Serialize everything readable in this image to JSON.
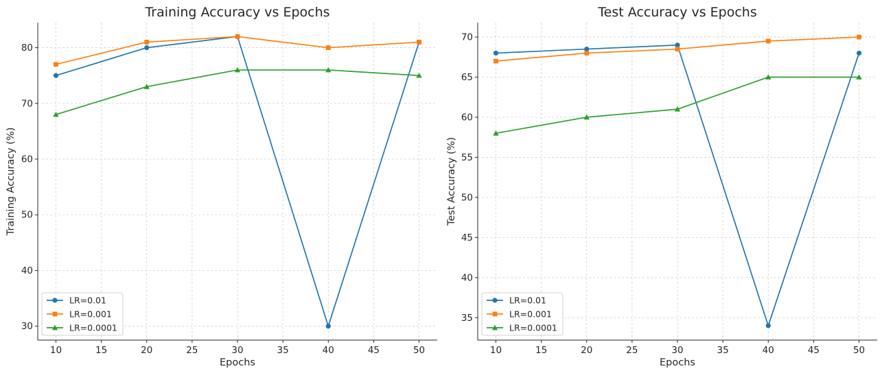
{
  "chart_data": [
    {
      "type": "line",
      "title": "Training Accuracy vs Epochs",
      "xlabel": "Epochs",
      "ylabel": "Training Accuracy (%)",
      "x": [
        10,
        20,
        30,
        40,
        50
      ],
      "xlim": [
        8,
        52
      ],
      "ylim": [
        27.5,
        84.5
      ],
      "xticks": [
        10,
        15,
        20,
        25,
        30,
        35,
        40,
        45,
        50
      ],
      "yticks": [
        30,
        40,
        50,
        60,
        70,
        80
      ],
      "grid": true,
      "legend_position": "lower-left",
      "series": [
        {
          "name": "LR=0.01",
          "color": "#1f77b4",
          "marker": "circle",
          "values": [
            75,
            80,
            82,
            30,
            81
          ]
        },
        {
          "name": "LR=0.001",
          "color": "#ff7f0e",
          "marker": "square",
          "values": [
            77,
            81,
            82,
            80,
            81
          ]
        },
        {
          "name": "LR=0.0001",
          "color": "#2ca02c",
          "marker": "triangle",
          "values": [
            68,
            73,
            76,
            76,
            75
          ]
        }
      ]
    },
    {
      "type": "line",
      "title": "Test Accuracy vs Epochs",
      "xlabel": "Epochs",
      "ylabel": "Test Accuracy (%)",
      "x": [
        10,
        20,
        30,
        40,
        50
      ],
      "xlim": [
        8,
        52
      ],
      "ylim": [
        32.2,
        71.8
      ],
      "xticks": [
        10,
        15,
        20,
        25,
        30,
        35,
        40,
        45,
        50
      ],
      "yticks": [
        35,
        40,
        45,
        50,
        55,
        60,
        65,
        70
      ],
      "grid": true,
      "legend_position": "lower-left",
      "series": [
        {
          "name": "LR=0.01",
          "color": "#1f77b4",
          "marker": "circle",
          "values": [
            68,
            68.5,
            69,
            34,
            68
          ]
        },
        {
          "name": "LR=0.001",
          "color": "#ff7f0e",
          "marker": "square",
          "values": [
            67,
            68,
            68.5,
            69.5,
            70
          ]
        },
        {
          "name": "LR=0.0001",
          "color": "#2ca02c",
          "marker": "triangle",
          "values": [
            58,
            60,
            61,
            65,
            65
          ]
        }
      ]
    }
  ]
}
